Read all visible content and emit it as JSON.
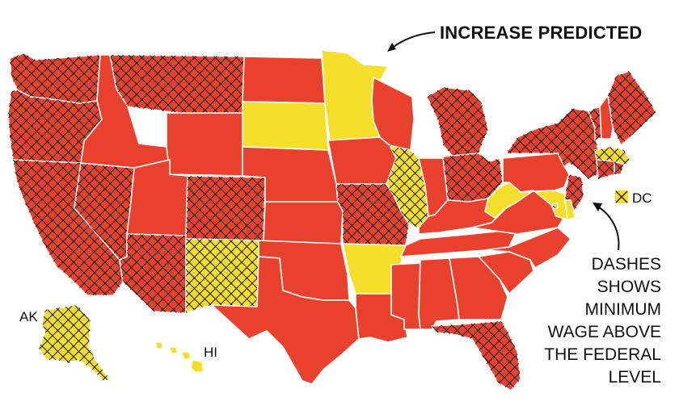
{
  "title": "INCREASE PREDICTED",
  "note_lines": [
    "DASHES",
    "SHOWS",
    "MINIMUM",
    "WAGE ABOVE",
    "THE FEDERAL",
    "LEVEL"
  ],
  "labels": {
    "ak": "AK",
    "hi": "HI",
    "dc": "DC"
  },
  "colors": {
    "no_increase": "#e8422f",
    "increase": "#f6df2a",
    "hatch": "#1a1a1a",
    "border": "#ffffff"
  },
  "legend": {
    "yellow": "increase predicted",
    "hatch": "minimum wage above the federal level"
  },
  "states": [
    {
      "abbr": "WA",
      "increase": false,
      "above_federal": true
    },
    {
      "abbr": "OR",
      "increase": false,
      "above_federal": true
    },
    {
      "abbr": "CA",
      "increase": false,
      "above_federal": true
    },
    {
      "abbr": "NV",
      "increase": false,
      "above_federal": true
    },
    {
      "abbr": "ID",
      "increase": false,
      "above_federal": false
    },
    {
      "abbr": "MT",
      "increase": false,
      "above_federal": true
    },
    {
      "abbr": "WY",
      "increase": false,
      "above_federal": false
    },
    {
      "abbr": "UT",
      "increase": false,
      "above_federal": false
    },
    {
      "abbr": "AZ",
      "increase": false,
      "above_federal": true
    },
    {
      "abbr": "CO",
      "increase": false,
      "above_federal": true
    },
    {
      "abbr": "NM",
      "increase": true,
      "above_federal": true
    },
    {
      "abbr": "ND",
      "increase": false,
      "above_federal": false
    },
    {
      "abbr": "SD",
      "increase": true,
      "above_federal": false
    },
    {
      "abbr": "NE",
      "increase": false,
      "above_federal": false
    },
    {
      "abbr": "KS",
      "increase": false,
      "above_federal": false
    },
    {
      "abbr": "OK",
      "increase": false,
      "above_federal": false
    },
    {
      "abbr": "TX",
      "increase": false,
      "above_federal": false
    },
    {
      "abbr": "MN",
      "increase": true,
      "above_federal": false
    },
    {
      "abbr": "IA",
      "increase": false,
      "above_federal": false
    },
    {
      "abbr": "MO",
      "increase": false,
      "above_federal": true
    },
    {
      "abbr": "AR",
      "increase": true,
      "above_federal": false
    },
    {
      "abbr": "LA",
      "increase": false,
      "above_federal": false
    },
    {
      "abbr": "WI",
      "increase": false,
      "above_federal": false
    },
    {
      "abbr": "IL",
      "increase": true,
      "above_federal": true
    },
    {
      "abbr": "MI",
      "increase": false,
      "above_federal": true
    },
    {
      "abbr": "IN",
      "increase": false,
      "above_federal": false
    },
    {
      "abbr": "OH",
      "increase": false,
      "above_federal": true
    },
    {
      "abbr": "KY",
      "increase": false,
      "above_federal": false
    },
    {
      "abbr": "TN",
      "increase": false,
      "above_federal": false
    },
    {
      "abbr": "MS",
      "increase": false,
      "above_federal": false
    },
    {
      "abbr": "AL",
      "increase": false,
      "above_federal": false
    },
    {
      "abbr": "GA",
      "increase": false,
      "above_federal": false
    },
    {
      "abbr": "FL",
      "increase": false,
      "above_federal": true
    },
    {
      "abbr": "SC",
      "increase": false,
      "above_federal": false
    },
    {
      "abbr": "NC",
      "increase": false,
      "above_federal": false
    },
    {
      "abbr": "VA",
      "increase": false,
      "above_federal": false
    },
    {
      "abbr": "WV",
      "increase": true,
      "above_federal": false
    },
    {
      "abbr": "PA",
      "increase": false,
      "above_federal": false
    },
    {
      "abbr": "NY",
      "increase": false,
      "above_federal": true
    },
    {
      "abbr": "VT",
      "increase": false,
      "above_federal": true
    },
    {
      "abbr": "NH",
      "increase": false,
      "above_federal": false
    },
    {
      "abbr": "ME",
      "increase": false,
      "above_federal": true
    },
    {
      "abbr": "MA",
      "increase": true,
      "above_federal": true
    },
    {
      "abbr": "CT",
      "increase": false,
      "above_federal": true
    },
    {
      "abbr": "RI",
      "increase": false,
      "above_federal": true
    },
    {
      "abbr": "NJ",
      "increase": false,
      "above_federal": true
    },
    {
      "abbr": "DE",
      "increase": true,
      "above_federal": false
    },
    {
      "abbr": "MD",
      "increase": true,
      "above_federal": false
    },
    {
      "abbr": "DC",
      "increase": true,
      "above_federal": true
    },
    {
      "abbr": "AK",
      "increase": true,
      "above_federal": true
    },
    {
      "abbr": "HI",
      "increase": true,
      "above_federal": false
    }
  ]
}
